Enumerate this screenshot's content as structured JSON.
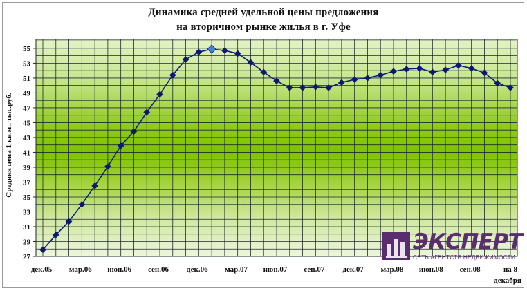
{
  "title_line1": "Динамика средней удельной цены предложения",
  "title_line2": "на вторичном рынке жилья в г. Уфе",
  "logo": {
    "word": "ЭКСПЕРТ",
    "subtitle": "СЕТЬ АГЕНТСТВ НЕДВИЖИМОСТИ"
  },
  "colors": {
    "line": "#0d1a7a",
    "marker": "#0b1a6e",
    "highlight_marker": "#4d7fe0",
    "grid": "#1c2a2a"
  },
  "chart_data": {
    "type": "line",
    "ylabel": "Средняя цена 1 кв.м., тыс.руб.",
    "xlabel": "",
    "ylim": [
      27,
      56
    ],
    "yticks": [
      27,
      29,
      31,
      33,
      35,
      37,
      39,
      41,
      43,
      45,
      47,
      49,
      51,
      53,
      55
    ],
    "grid": true,
    "x_tick_labels": [
      "дек.05",
      "мар.06",
      "июн.06",
      "сен.06",
      "дек.06",
      "мар.07",
      "июн.07",
      "сен.07",
      "дек.07",
      "мар.08",
      "июн.08",
      "сен.08",
      "на 8 декабря"
    ],
    "series": [
      {
        "values": [
          27.9,
          29.9,
          31.7,
          34.0,
          36.5,
          39.1,
          41.9,
          43.8,
          46.4,
          48.8,
          51.4,
          53.5,
          54.5,
          54.9,
          54.7,
          54.3,
          53.1,
          51.8,
          50.6,
          49.7,
          49.7,
          49.8,
          49.7,
          50.4,
          50.8,
          51.0,
          51.4,
          51.9,
          52.2,
          52.3,
          51.8,
          52.1,
          52.7,
          52.3,
          51.7,
          50.3,
          49.7
        ],
        "highlight_index": 13
      }
    ]
  }
}
